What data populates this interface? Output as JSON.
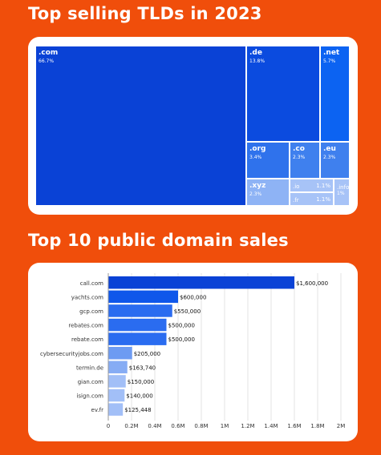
{
  "headings": {
    "tlds": "Top selling TLDs in 2023",
    "sales": "Top 10 public domain sales"
  },
  "chart_data": [
    {
      "type": "treemap",
      "title": "Top selling TLDs in 2023",
      "items": [
        {
          "label": ".com",
          "percent": "66.7%",
          "value": 66.7,
          "color": "#0A42D6"
        },
        {
          "label": ".de",
          "percent": "13.8%",
          "value": 13.8,
          "color": "#0B4BDF"
        },
        {
          "label": ".net",
          "percent": "5.7%",
          "value": 5.7,
          "color": "#0C63F2"
        },
        {
          "label": ".org",
          "percent": "3.4%",
          "value": 3.4,
          "color": "#2F72EC"
        },
        {
          "label": ".co",
          "percent": "2.3%",
          "value": 2.3,
          "color": "#3F80EE"
        },
        {
          "label": ".eu",
          "percent": "2.3%",
          "value": 2.3,
          "color": "#3F80EE"
        },
        {
          "label": ".xyz",
          "percent": "2.3%",
          "value": 2.3,
          "color": "#8EB3F5"
        },
        {
          "label": ".io",
          "percent": "1.1%",
          "value": 1.1,
          "color": "#A7C3F7"
        },
        {
          "label": ".fr",
          "percent": "1.1%",
          "value": 1.1,
          "color": "#A7C3F7"
        },
        {
          "label": ".info",
          "percent": "1%",
          "value": 1.0,
          "color": "#A7C3F7"
        }
      ]
    },
    {
      "type": "bar",
      "orientation": "horizontal",
      "title": "Top 10 public domain sales",
      "categories": [
        "call.com",
        "yachts.com",
        "gcp.com",
        "rebates.com",
        "rebate.com",
        "cybersecurityjobs.com",
        "termin.de",
        "gian.com",
        "isign.com",
        "ev.fr"
      ],
      "values": [
        1600000,
        600000,
        550000,
        500000,
        500000,
        205000,
        163740,
        150000,
        140000,
        125448
      ],
      "value_labels": [
        "$1,600,000",
        "$600,000",
        "$550,000",
        "$500,000",
        "$500,000",
        "$205,000",
        "$163,740",
        "$150,000",
        "$140,000",
        "$125,448"
      ],
      "bar_colors": [
        "#0A42D6",
        "#0F57EA",
        "#2A6CF0",
        "#2A6CF0",
        "#2A6CF0",
        "#6D9BF2",
        "#86ACF4",
        "#A2BFF7",
        "#A2BFF7",
        "#A2BFF7"
      ],
      "xticks": [
        0,
        200000,
        400000,
        600000,
        800000,
        1000000,
        1200000,
        1400000,
        1600000,
        1800000,
        2000000
      ],
      "xtick_labels": [
        "0",
        "0.2M",
        "0.4M",
        "0.6M",
        "0.8M",
        "1M",
        "1.2M",
        "1.4M",
        "1.6M",
        "1.8M",
        "2M"
      ],
      "xlim": [
        0,
        2000000
      ],
      "grid": true
    }
  ]
}
